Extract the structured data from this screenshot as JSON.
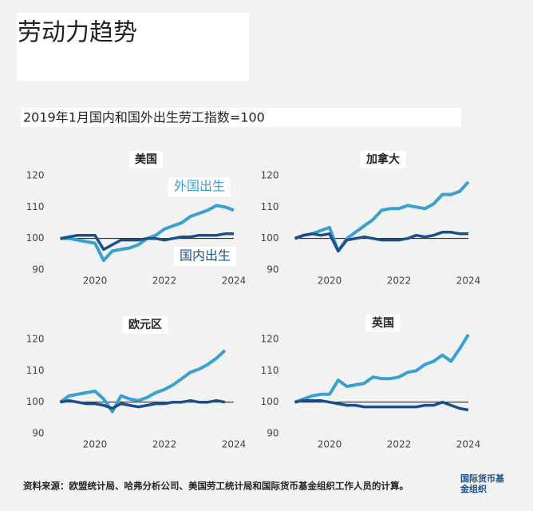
{
  "title": "劳动力趋势",
  "subtitle": "2019年1月国内和国外出生劳工指数=100",
  "source": "资料来源：欧盟统计局、哈弗分析公司、美国劳工统计局和国际货币基金组织工作人员的计算。",
  "logo": "国际货币基金组织",
  "chart_data": [
    {
      "type": "line",
      "title": "美国",
      "x": [
        2019,
        2019.25,
        2019.5,
        2019.75,
        2020,
        2020.25,
        2020.5,
        2020.75,
        2021,
        2021.25,
        2021.5,
        2021.75,
        2022,
        2022.25,
        2022.5,
        2022.75,
        2023,
        2023.25,
        2023.5,
        2023.75,
        2024
      ],
      "series": [
        {
          "name": "外国出生",
          "color": "#3aa0cf",
          "values": [
            100,
            100,
            99.5,
            99,
            98.5,
            93,
            96,
            96.5,
            97,
            98,
            100,
            101,
            103,
            104,
            105,
            107,
            108,
            109,
            110.5,
            110,
            109
          ]
        },
        {
          "name": "国内出生",
          "color": "#1b4f8a",
          "values": [
            100,
            100.5,
            101,
            101,
            101,
            96.5,
            98,
            99.5,
            99.5,
            99.5,
            100,
            100,
            99.5,
            100,
            100.5,
            100.5,
            101,
            101,
            101,
            101.5,
            101.5
          ]
        }
      ],
      "xlim": [
        2019,
        2024
      ],
      "xticks": [
        2020,
        2022,
        2024
      ],
      "ylim": [
        90,
        120
      ],
      "yticks": [
        90,
        100,
        110,
        120
      ],
      "hline": 100
    },
    {
      "type": "line",
      "title": "加拿大",
      "x": [
        2019,
        2019.25,
        2019.5,
        2019.75,
        2020,
        2020.25,
        2020.5,
        2020.75,
        2021,
        2021.25,
        2021.5,
        2021.75,
        2022,
        2022.25,
        2022.5,
        2022.75,
        2023,
        2023.25,
        2023.5,
        2023.75,
        2024
      ],
      "series": [
        {
          "color": "#3aa0cf",
          "values": [
            100,
            101,
            101.5,
            102.5,
            103.5,
            96,
            100,
            102,
            104,
            106,
            109,
            109.5,
            109.5,
            110.5,
            110,
            109.5,
            111,
            114,
            114,
            115,
            118
          ]
        },
        {
          "color": "#1b4f8a",
          "values": [
            100,
            101,
            101.5,
            101,
            101.5,
            96,
            99.5,
            100,
            100.5,
            100,
            99.5,
            99.5,
            99.5,
            100,
            101,
            100.5,
            101,
            102,
            102,
            101.5,
            101.5
          ]
        }
      ],
      "xlim": [
        2019,
        2024
      ],
      "xticks": [
        2020,
        2022,
        2024
      ],
      "ylim": [
        90,
        120
      ],
      "yticks": [
        90,
        100,
        110,
        120
      ],
      "hline": 100
    },
    {
      "type": "line",
      "title": "欧元区",
      "x": [
        2019,
        2019.25,
        2019.5,
        2019.75,
        2020,
        2020.25,
        2020.5,
        2020.75,
        2021,
        2021.25,
        2021.5,
        2021.75,
        2022,
        2022.25,
        2022.5,
        2022.75,
        2023,
        2023.25,
        2023.5,
        2023.75,
        2024
      ],
      "series": [
        {
          "color": "#3aa0cf",
          "values": [
            100,
            102,
            102.5,
            103,
            103.5,
            101,
            97,
            102,
            101,
            100.5,
            101.5,
            103,
            104,
            105.5,
            107.5,
            109.5,
            110.5,
            112,
            114,
            116.5,
            null
          ]
        },
        {
          "color": "#1b4f8a",
          "values": [
            100,
            100.5,
            100,
            99.5,
            99.5,
            99,
            98,
            99.5,
            99,
            98.5,
            99,
            99.5,
            99.5,
            100,
            100,
            100.5,
            100,
            100,
            100.5,
            100,
            null
          ]
        }
      ],
      "xlim": [
        2019,
        2024
      ],
      "xticks": [
        2020,
        2022,
        2024
      ],
      "ylim": [
        90,
        120
      ],
      "yticks": [
        90,
        100,
        110,
        120
      ],
      "hline": 100
    },
    {
      "type": "line",
      "title": "英国",
      "x": [
        2019,
        2019.25,
        2019.5,
        2019.75,
        2020,
        2020.25,
        2020.5,
        2020.75,
        2021,
        2021.25,
        2021.5,
        2021.75,
        2022,
        2022.25,
        2022.5,
        2022.75,
        2023,
        2023.25,
        2023.5,
        2023.75,
        2024
      ],
      "series": [
        {
          "color": "#3aa0cf",
          "values": [
            100,
            101,
            102,
            102.5,
            102.5,
            107,
            105,
            105.5,
            106,
            108,
            107.5,
            107.5,
            108,
            109.5,
            110,
            112,
            113,
            115,
            113,
            117,
            121.5
          ]
        },
        {
          "color": "#1b4f8a",
          "values": [
            100,
            100.5,
            100.5,
            100.5,
            100,
            99.5,
            99,
            99,
            98.5,
            98.5,
            98.5,
            98.5,
            98.5,
            98.5,
            98.5,
            99,
            99,
            100,
            99,
            98,
            97.5
          ]
        }
      ],
      "xlim": [
        2019,
        2024
      ],
      "xticks": [
        2020,
        2022,
        2024
      ],
      "ylim": [
        90,
        120
      ],
      "yticks": [
        90,
        100,
        110,
        120
      ],
      "hline": 100
    }
  ]
}
